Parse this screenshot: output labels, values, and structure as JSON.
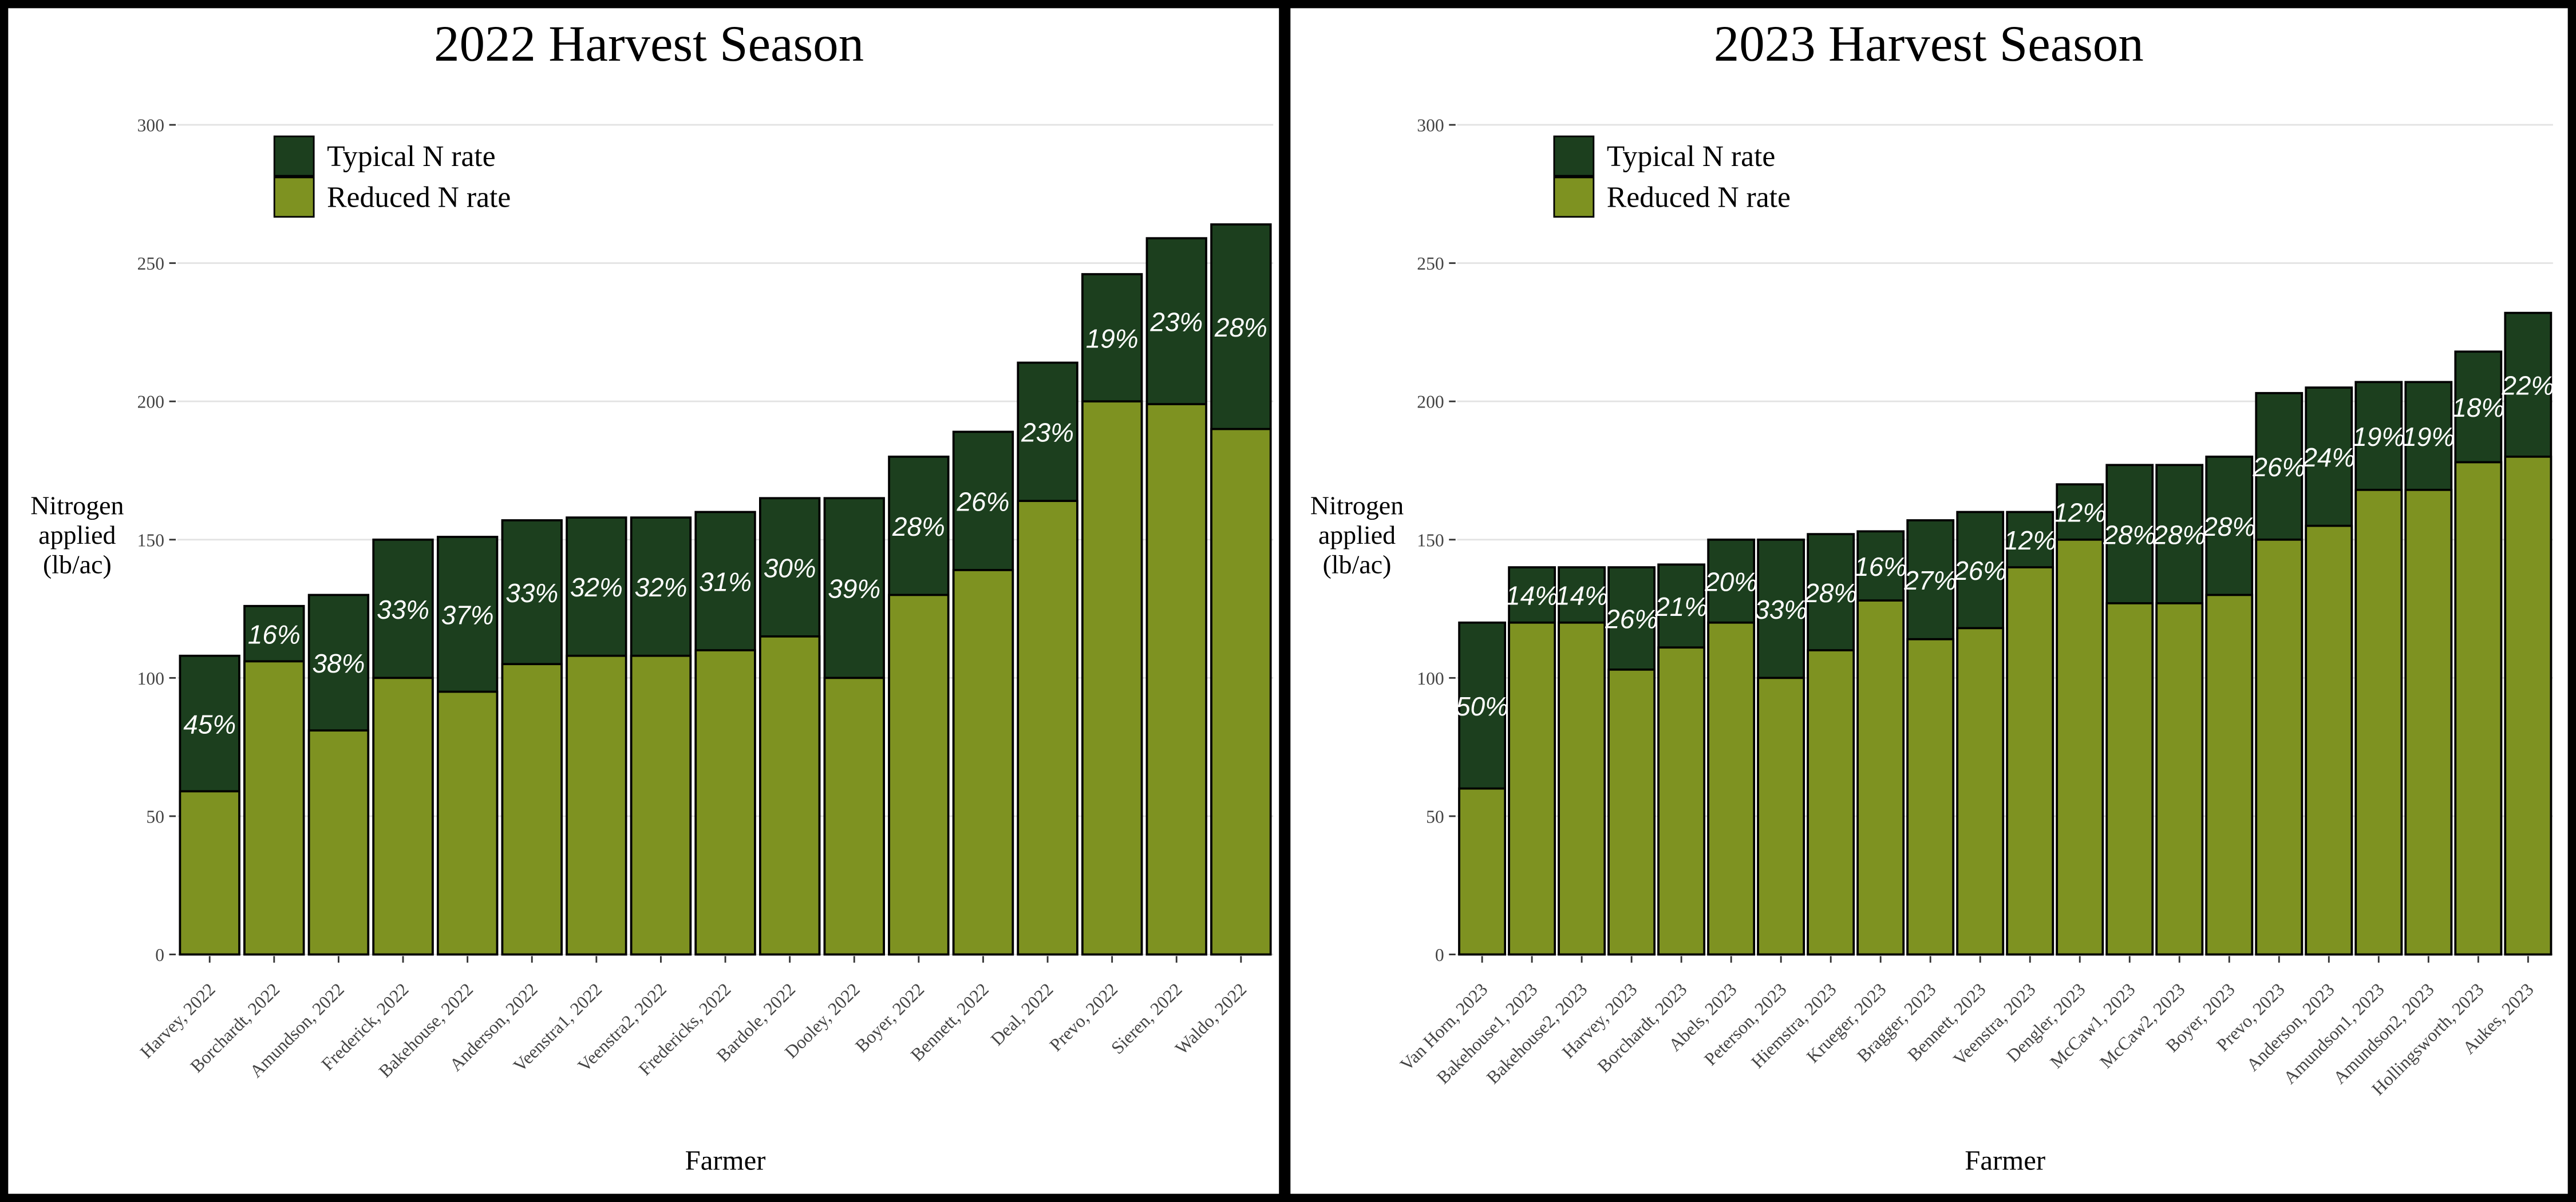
{
  "chart_data": [
    {
      "type": "bar",
      "title": "2022 Harvest Season",
      "x_label": "Farmer",
      "y_label": "Nitrogen applied (lb/ac)",
      "categories": [
        "Harvey, 2022",
        "Borchardt, 2022",
        "Amundson, 2022",
        "Frederick, 2022",
        "Bakehouse, 2022",
        "Anderson, 2022",
        "Veenstra1, 2022",
        "Veenstra2, 2022",
        "Fredericks, 2022",
        "Bardole, 2022",
        "Dooley, 2022",
        "Boyer, 2022",
        "Bennett, 2022",
        "Deal, 2022",
        "Prevo, 2022",
        "Sieren, 2022",
        "Waldo, 2022"
      ],
      "series": [
        {
          "name": "Typical N rate",
          "color": "#1c3f1e",
          "values": [
            108,
            126,
            130,
            150,
            151,
            157,
            158,
            158,
            160,
            165,
            165,
            180,
            189,
            214,
            246,
            259,
            264
          ]
        },
        {
          "name": "Reduced N rate",
          "color": "#7e9221",
          "values": [
            59,
            106,
            81,
            100,
            95,
            105,
            108,
            108,
            110,
            115,
            100,
            130,
            139,
            164,
            200,
            199,
            190
          ]
        }
      ],
      "reduction": {
        "values": [
          45,
          16,
          38,
          33,
          37,
          33,
          32,
          32,
          31,
          30,
          39,
          28,
          26,
          23,
          19,
          23,
          28
        ],
        "value_labels": [
          "45%",
          "16%",
          "38%",
          "33%",
          "37%",
          "33%",
          "32%",
          "32%",
          "31%",
          "30%",
          "39%",
          "28%",
          "26%",
          "23%",
          "19%",
          "23%",
          "28%"
        ]
      },
      "ylim": [
        0,
        300
      ],
      "yticks": [
        0,
        50,
        100,
        150,
        200,
        250,
        300
      ],
      "grid": true
    },
    {
      "type": "bar",
      "title": "2023 Harvest Season",
      "x_label": "Farmer",
      "y_label": "Nitrogen applied (lb/ac)",
      "categories": [
        "Van Horn, 2023",
        "Bakehouse1, 2023",
        "Bakehouse2, 2023",
        "Harvey, 2023",
        "Borchardt, 2023",
        "Abels, 2023",
        "Peterson, 2023",
        "Hiemstra, 2023",
        "Krueger, 2023",
        "Bragger, 2023",
        "Bennett, 2023",
        "Veenstra, 2023",
        "Dengler, 2023",
        "McCaw1, 2023",
        "McCaw2, 2023",
        "Boyer, 2023",
        "Prevo, 2023",
        "Anderson, 2023",
        "Amundson1, 2023",
        "Amundson2, 2023",
        "Hollingsworth, 2023",
        "Aukes, 2023"
      ],
      "series": [
        {
          "name": "Typical N rate",
          "color": "#1c3f1e",
          "values": [
            120,
            140,
            140,
            140,
            141,
            150,
            150,
            152,
            153,
            157,
            160,
            160,
            170,
            177,
            177,
            180,
            203,
            205,
            207,
            207,
            218,
            232
          ]
        },
        {
          "name": "Reduced N rate",
          "color": "#7e9221",
          "values": [
            60,
            120,
            120,
            103,
            111,
            120,
            100,
            110,
            128,
            114,
            118,
            140,
            150,
            127,
            127,
            130,
            150,
            155,
            168,
            168,
            178,
            180
          ]
        }
      ],
      "reduction": {
        "values": [
          50,
          14,
          14,
          26,
          21,
          20,
          33,
          28,
          16,
          27,
          26,
          12,
          12,
          28,
          28,
          28,
          26,
          24,
          19,
          19,
          18,
          22
        ],
        "value_labels": [
          "50%",
          "14%",
          "14%",
          "26%",
          "21%",
          "20%",
          "33%",
          "28%",
          "16%",
          "27%",
          "26%",
          "12%",
          "12%",
          "28%",
          "28%",
          "28%",
          "26%",
          "24%",
          "19%",
          "19%",
          "18%",
          "22%"
        ]
      },
      "ylim": [
        0,
        300
      ],
      "yticks": [
        0,
        50,
        100,
        150,
        200,
        250,
        300
      ],
      "grid": true
    }
  ]
}
